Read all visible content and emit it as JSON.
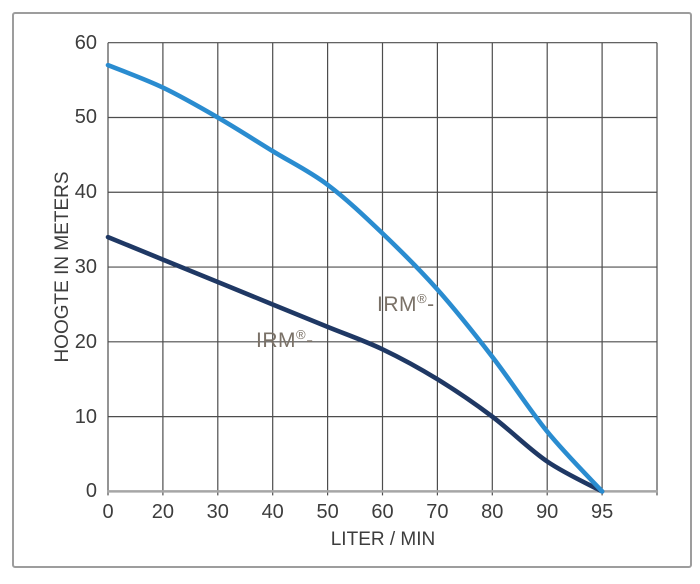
{
  "chart_data": {
    "type": "line",
    "title": "",
    "xlabel": "LITER / MIN",
    "ylabel": "HOOGTE IN METERS",
    "x_values": [
      0,
      20,
      30,
      40,
      50,
      60,
      70,
      80,
      90,
      95
    ],
    "x_tick_labels": [
      "0",
      "20",
      "30",
      "40",
      "50",
      "60",
      "70",
      "80",
      "90",
      "95"
    ],
    "y_tick_labels": [
      "60",
      "50",
      "40",
      "30",
      "20",
      "10",
      "0"
    ],
    "y_ticks": [
      0,
      10,
      20,
      30,
      40,
      50,
      60
    ],
    "ylim": [
      0,
      60
    ],
    "grid": true,
    "extra_unlabeled_gridline_column": 1,
    "legend_position": "inline-labels",
    "series": [
      {
        "label": "IRM®-",
        "label_parts": {
          "prefix": "IRM",
          "sup": "®",
          "suffix": "-"
        },
        "color": "#2A8CD0",
        "values_by_tick": [
          57,
          54,
          50,
          45.5,
          41,
          34.5,
          27,
          18,
          8,
          0
        ],
        "points": [
          [
            0,
            57
          ],
          [
            20,
            54
          ],
          [
            30,
            50
          ],
          [
            40,
            45.5
          ],
          [
            50,
            41
          ],
          [
            60,
            34.5
          ],
          [
            70,
            27
          ],
          [
            80,
            18
          ],
          [
            90,
            8
          ],
          [
            95,
            0
          ]
        ]
      },
      {
        "label": "IRM®-",
        "label_parts": {
          "prefix": "IRM",
          "sup": "®",
          "suffix": "-"
        },
        "color": "#1F3864",
        "values_by_tick": [
          34,
          31,
          28,
          25,
          22,
          19,
          15,
          10,
          4,
          0
        ],
        "points": [
          [
            0,
            34
          ],
          [
            20,
            31
          ],
          [
            30,
            28
          ],
          [
            40,
            25
          ],
          [
            50,
            22
          ],
          [
            60,
            19
          ],
          [
            70,
            15
          ],
          [
            80,
            10
          ],
          [
            90,
            4
          ],
          [
            95,
            0
          ]
        ]
      }
    ]
  },
  "colors": {
    "gridline": "#4d4d4d",
    "axis_line": "#a6a6a6",
    "tick_text": "#3d3d3d",
    "series_label_text": "#7a7167",
    "frame_border": "#9d9d9d",
    "background": "#ffffff"
  }
}
